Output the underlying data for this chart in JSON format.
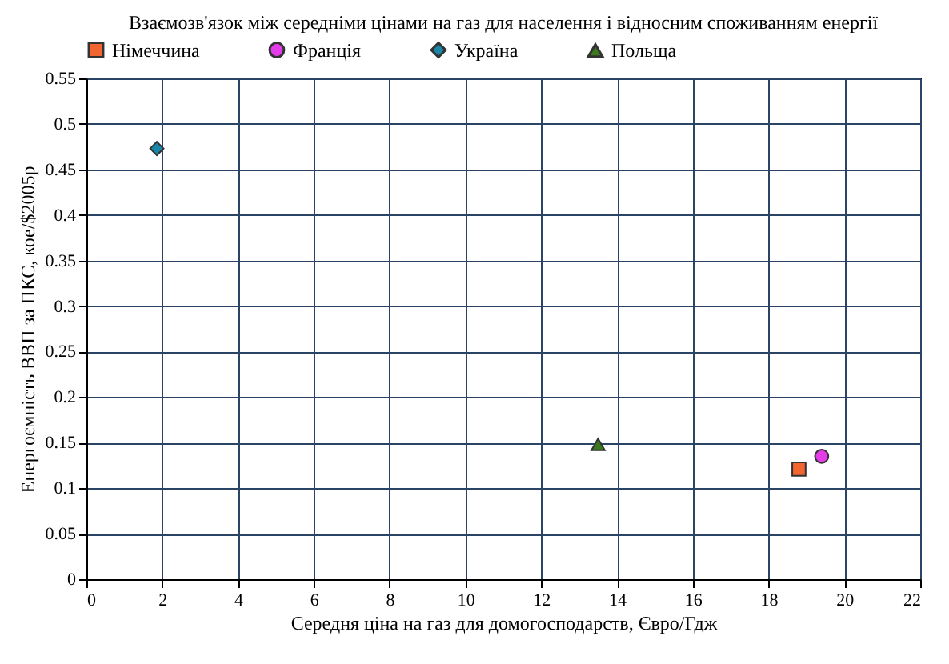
{
  "chart_data": {
    "type": "scatter",
    "title": "Взаємозв'язок між середніми цінами на газ для населення і відносним споживанням енергії",
    "xlabel": "Середня ціна на газ для домогосподарств, Євро/Гдж",
    "ylabel": "Енергоємність ВВП за ПКС, кое/$2005р",
    "series": [
      {
        "name": "Німеччина",
        "color": "#f26531",
        "marker": "square",
        "x": [
          18.8
        ],
        "values": [
          0.121
        ]
      },
      {
        "name": "Франція",
        "color": "#e33ce8",
        "marker": "circle",
        "x": [
          19.4
        ],
        "values": [
          0.135
        ]
      },
      {
        "name": "Україна",
        "color": "#1a86a8",
        "marker": "diamond",
        "x": [
          1.86
        ],
        "values": [
          0.473
        ]
      },
      {
        "name": "Польща",
        "color": "#3a7a1c",
        "marker": "triangle",
        "x": [
          13.5
        ],
        "values": [
          0.148
        ]
      }
    ],
    "xlim": [
      0,
      22
    ],
    "xticks": [
      0,
      2,
      4,
      6,
      8,
      10,
      12,
      14,
      16,
      18,
      20,
      22
    ],
    "ylim": [
      0,
      0.55
    ],
    "yticks": [
      0,
      0.05,
      0.1,
      0.15,
      0.2,
      0.25,
      0.3,
      0.35,
      0.4,
      0.45,
      0.5,
      0.55
    ],
    "grid": true,
    "legend": "top left"
  }
}
